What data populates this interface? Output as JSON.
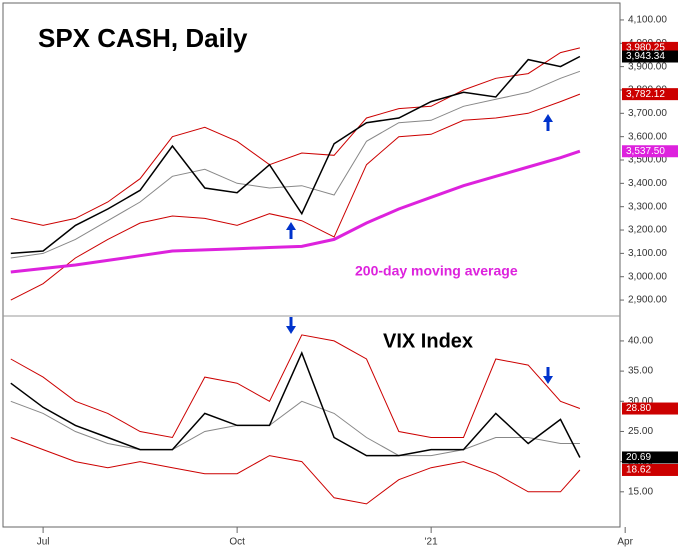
{
  "chart_data": [
    {
      "type": "line",
      "title": "SPX CASH, Daily",
      "annotation": "200-day moving average",
      "x": [
        -0.5,
        0,
        0.5,
        1,
        1.5,
        2,
        2.5,
        3,
        3.5,
        4,
        4.5,
        5,
        5.5,
        6,
        6.5,
        7,
        7.5,
        8,
        8.3
      ],
      "xlim": [
        -0.62,
        8.92
      ],
      "ylim": [
        2836,
        4164
      ],
      "yticks": [
        {
          "value": 2900,
          "label": "2,900.00"
        },
        {
          "value": 3000,
          "label": "3,000.00"
        },
        {
          "value": 3100,
          "label": "3,100.00"
        },
        {
          "value": 3200,
          "label": "3,200.00"
        },
        {
          "value": 3300,
          "label": "3,300.00"
        },
        {
          "value": 3400,
          "label": "3,400.00"
        },
        {
          "value": 3500,
          "label": "3,500.00"
        },
        {
          "value": 3600,
          "label": "3,600.00"
        },
        {
          "value": 3700,
          "label": "3,700.00"
        },
        {
          "value": 3800,
          "label": "3,800.00"
        },
        {
          "value": 3900,
          "label": "3,900.00"
        },
        {
          "value": 4000,
          "label": "4,000.00"
        },
        {
          "value": 4100,
          "label": "4,100.00"
        }
      ],
      "series": [
        {
          "color": "#cc0000",
          "width": 1,
          "values": [
            3250,
            3220,
            3250,
            3320,
            3420,
            3600,
            3640,
            3580,
            3480,
            3530,
            3520,
            3680,
            3720,
            3730,
            3800,
            3850,
            3870,
            3960,
            3980.25
          ],
          "end_label": "3,980.25"
        },
        {
          "color": "#cc0000",
          "width": 1,
          "values": [
            2900,
            2970,
            3080,
            3160,
            3230,
            3260,
            3250,
            3220,
            3270,
            3240,
            3170,
            3480,
            3600,
            3610,
            3670,
            3680,
            3700,
            3750,
            3782.12
          ],
          "end_label": "3,782.12"
        },
        {
          "color": "#888888",
          "width": 1,
          "values": [
            3080,
            3100,
            3160,
            3240,
            3320,
            3430,
            3460,
            3400,
            3380,
            3390,
            3350,
            3580,
            3660,
            3670,
            3730,
            3760,
            3790,
            3850,
            3880
          ]
        },
        {
          "color": "#dd22dd",
          "width": 3,
          "values": [
            3020,
            3035,
            3050,
            3070,
            3090,
            3110,
            3115,
            3120,
            3125,
            3130,
            3160,
            3230,
            3290,
            3340,
            3390,
            3430,
            3470,
            3510,
            3537.5
          ],
          "end_label": "3,537.50"
        },
        {
          "color": "#000000",
          "width": 1.5,
          "values": [
            3100,
            3110,
            3220,
            3290,
            3370,
            3560,
            3380,
            3360,
            3480,
            3270,
            3570,
            3660,
            3680,
            3750,
            3790,
            3770,
            3930,
            3900,
            3943.34
          ],
          "end_label": "3,943.34"
        }
      ]
    },
    {
      "type": "line",
      "title": "VIX Index",
      "x": [
        -0.5,
        0,
        0.5,
        1,
        1.5,
        2,
        2.5,
        3,
        3.5,
        4,
        4.5,
        5,
        5.5,
        6,
        6.5,
        7,
        7.5,
        8,
        8.3
      ],
      "xlim": [
        -0.62,
        8.92
      ],
      "ylim": [
        9.5,
        43.8
      ],
      "xticks": [
        {
          "value": 0,
          "label": "Jul"
        },
        {
          "value": 3,
          "label": "Oct"
        },
        {
          "value": 6,
          "label": "'21"
        },
        {
          "value": 9,
          "label": "Apr"
        }
      ],
      "yticks": [
        {
          "value": 15,
          "label": "15.00"
        },
        {
          "value": 20,
          "label": "20.00"
        },
        {
          "value": 25,
          "label": "25.00"
        },
        {
          "value": 30,
          "label": "30.00"
        },
        {
          "value": 35,
          "label": "35.00"
        },
        {
          "value": 40,
          "label": "40.00"
        }
      ],
      "series": [
        {
          "color": "#cc0000",
          "width": 1,
          "values": [
            37,
            34,
            30,
            28,
            25,
            24,
            34,
            33,
            30,
            41,
            40,
            37,
            25,
            24,
            24,
            37,
            36,
            30,
            28.8
          ],
          "end_label": "28.80"
        },
        {
          "color": "#cc0000",
          "width": 1,
          "values": [
            24,
            22,
            20,
            19,
            20,
            19,
            18,
            18,
            21,
            20,
            14,
            13,
            17,
            19,
            20,
            18,
            15,
            15,
            18.62
          ],
          "end_label": "18.62"
        },
        {
          "color": "#888888",
          "width": 1,
          "values": [
            30,
            28,
            25,
            23,
            22,
            22,
            25,
            26,
            26,
            30,
            28,
            24,
            21,
            21,
            22,
            24,
            24,
            23,
            23
          ]
        },
        {
          "color": "#000000",
          "width": 1.5,
          "values": [
            33,
            29,
            26,
            24,
            22,
            22,
            28,
            26,
            26,
            38,
            24,
            21,
            21,
            22,
            22,
            28,
            23,
            27,
            20.69
          ],
          "end_label": "20.69"
        }
      ]
    }
  ]
}
